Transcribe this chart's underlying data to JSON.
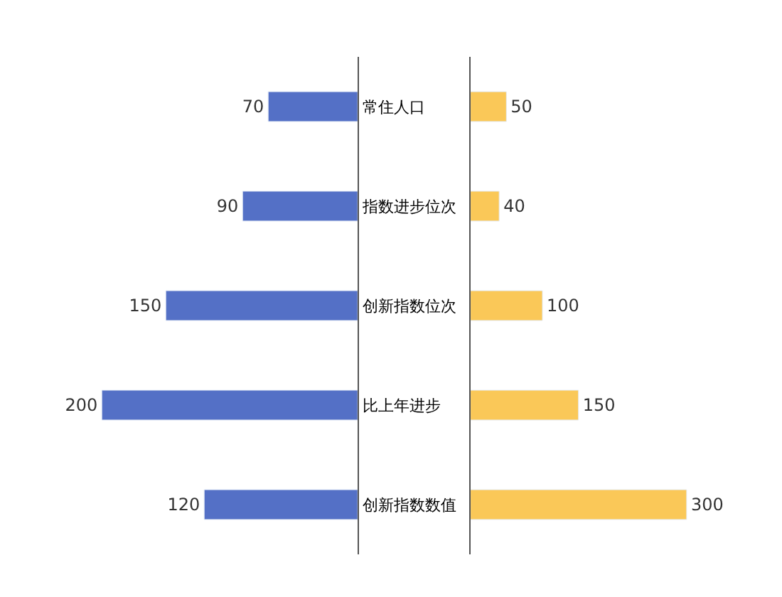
{
  "chart_data": [
    {
      "type": "bar",
      "orientation": "horizontal",
      "categories": [
        "常住人口",
        "指数进步位次",
        "创新指数位次",
        "比上年进步",
        "创新指数数值"
      ],
      "values": [
        70,
        90,
        150,
        200,
        120
      ],
      "color": "#5470c6",
      "data_labels": true,
      "tick_labels": "y"
    },
    {
      "type": "bar",
      "orientation": "horizontal",
      "values": [
        50,
        40,
        100,
        150,
        300
      ],
      "color": "#fac858",
      "data_labels": true,
      "tick_labels": false
    }
  ]
}
